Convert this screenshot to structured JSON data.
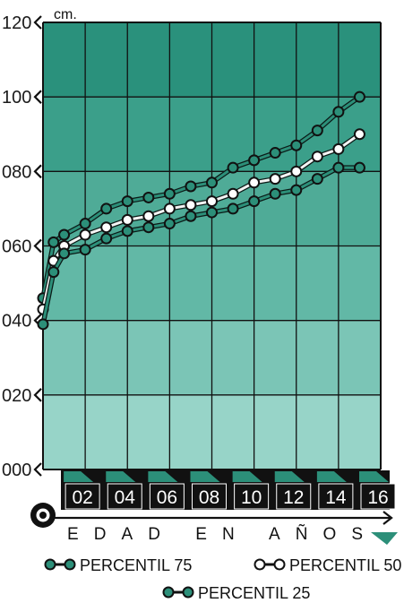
{
  "chart_data": {
    "type": "line",
    "unit_label": "cm.",
    "xlabel": "EDAD EN AÑOS",
    "yticks": [
      "000",
      "020",
      "040",
      "060",
      "080",
      "100",
      "120"
    ],
    "xticks": [
      "02",
      "04",
      "06",
      "08",
      "10",
      "12",
      "14",
      "16"
    ],
    "ylim": [
      0,
      120
    ],
    "xlim": [
      0,
      16
    ],
    "x": [
      0,
      0.5,
      1,
      2,
      3,
      4,
      5,
      6,
      7,
      8,
      9,
      10,
      11,
      12,
      13,
      14,
      15
    ],
    "series": [
      {
        "name": "PERCENTIL 75",
        "color": "#2c8f79",
        "hollow": false,
        "values": [
          46,
          61,
          63,
          66,
          70,
          72,
          73,
          74,
          76,
          77,
          81,
          83,
          85,
          87,
          91,
          96,
          100
        ]
      },
      {
        "name": "PERCENTIL 50",
        "color": "#111111",
        "hollow": true,
        "values": [
          43,
          56,
          60,
          63,
          65,
          67,
          68,
          70,
          71,
          72,
          74,
          77,
          78,
          80,
          84,
          86,
          90
        ]
      },
      {
        "name": "PERCENTIL 25",
        "color": "#2c8f79",
        "hollow": false,
        "values": [
          39,
          53,
          58,
          59,
          62,
          64,
          65,
          66,
          68,
          69,
          70,
          72,
          74,
          75,
          78,
          81,
          81
        ]
      }
    ],
    "grid": true,
    "legend_position": "bottom"
  }
}
